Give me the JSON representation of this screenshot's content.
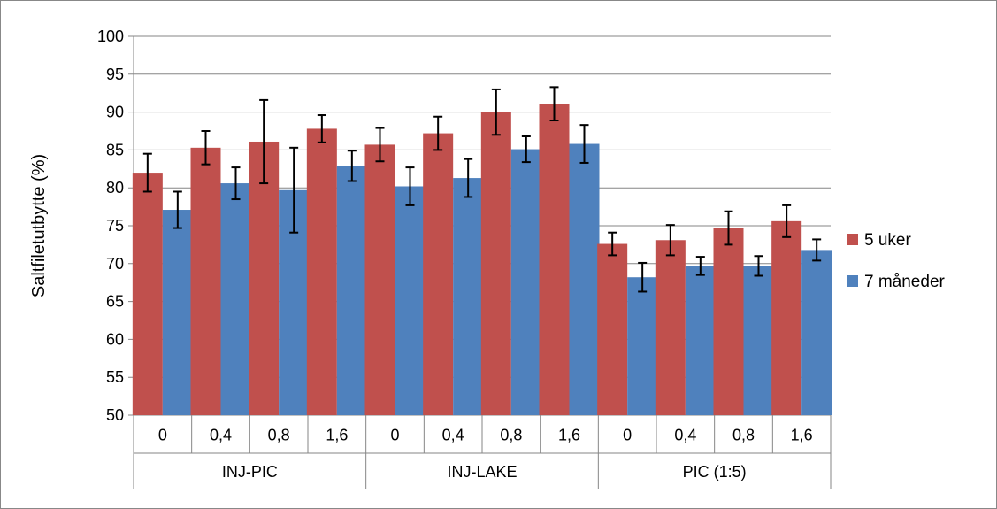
{
  "chart_data": {
    "type": "bar",
    "ylabel": "Saltfiletutbytte (%)",
    "ylim": [
      50,
      100
    ],
    "yticks": [
      50,
      55,
      60,
      65,
      70,
      75,
      80,
      85,
      90,
      95,
      100
    ],
    "grid": true,
    "legend_position": "right",
    "groups": [
      {
        "label": "INJ-PIC",
        "categories": [
          "0",
          "0,4",
          "0,8",
          "1,6"
        ]
      },
      {
        "label": "INJ-LAKE",
        "categories": [
          "0",
          "0,4",
          "0,8",
          "1,6"
        ]
      },
      {
        "label": "PIC (1:5)",
        "categories": [
          "0",
          "0,4",
          "0,8",
          "1,6"
        ]
      }
    ],
    "series": [
      {
        "name": "5 uker",
        "color": "#C0504D",
        "values": [
          82.0,
          85.3,
          86.1,
          87.8,
          85.7,
          87.2,
          90.0,
          91.1,
          72.6,
          73.1,
          74.7,
          75.6
        ],
        "errors": [
          2.5,
          2.2,
          5.5,
          1.8,
          2.2,
          2.2,
          3.0,
          2.2,
          1.5,
          2.0,
          2.2,
          2.1
        ]
      },
      {
        "name": "7 måneder",
        "color": "#4F81BD",
        "values": [
          77.1,
          80.6,
          79.7,
          82.9,
          80.2,
          81.3,
          85.1,
          85.8,
          68.2,
          69.7,
          69.7,
          71.8
        ],
        "errors": [
          2.4,
          2.1,
          5.6,
          2.0,
          2.5,
          2.5,
          1.7,
          2.5,
          1.9,
          1.2,
          1.3,
          1.4
        ]
      }
    ]
  }
}
